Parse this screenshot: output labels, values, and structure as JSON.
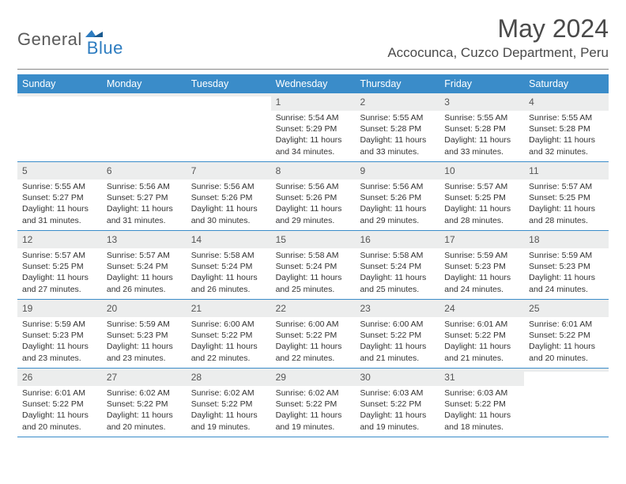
{
  "brand": {
    "part1": "General",
    "part2": "Blue"
  },
  "title": "May 2024",
  "location": "Accocunca, Cuzco Department, Peru",
  "colors": {
    "header_bg": "#3a8cc9",
    "header_text": "#ffffff",
    "daynum_bg": "#eceded",
    "week_divider": "#3a8cc9",
    "brand_gray": "#5a5a5a",
    "brand_blue": "#2d7cc0"
  },
  "day_names": [
    "Sunday",
    "Monday",
    "Tuesday",
    "Wednesday",
    "Thursday",
    "Friday",
    "Saturday"
  ],
  "weeks": [
    [
      {
        "n": "",
        "sr": "",
        "ss": "",
        "dl1": "",
        "dl2": ""
      },
      {
        "n": "",
        "sr": "",
        "ss": "",
        "dl1": "",
        "dl2": ""
      },
      {
        "n": "",
        "sr": "",
        "ss": "",
        "dl1": "",
        "dl2": ""
      },
      {
        "n": "1",
        "sr": "Sunrise: 5:54 AM",
        "ss": "Sunset: 5:29 PM",
        "dl1": "Daylight: 11 hours",
        "dl2": "and 34 minutes."
      },
      {
        "n": "2",
        "sr": "Sunrise: 5:55 AM",
        "ss": "Sunset: 5:28 PM",
        "dl1": "Daylight: 11 hours",
        "dl2": "and 33 minutes."
      },
      {
        "n": "3",
        "sr": "Sunrise: 5:55 AM",
        "ss": "Sunset: 5:28 PM",
        "dl1": "Daylight: 11 hours",
        "dl2": "and 33 minutes."
      },
      {
        "n": "4",
        "sr": "Sunrise: 5:55 AM",
        "ss": "Sunset: 5:28 PM",
        "dl1": "Daylight: 11 hours",
        "dl2": "and 32 minutes."
      }
    ],
    [
      {
        "n": "5",
        "sr": "Sunrise: 5:55 AM",
        "ss": "Sunset: 5:27 PM",
        "dl1": "Daylight: 11 hours",
        "dl2": "and 31 minutes."
      },
      {
        "n": "6",
        "sr": "Sunrise: 5:56 AM",
        "ss": "Sunset: 5:27 PM",
        "dl1": "Daylight: 11 hours",
        "dl2": "and 31 minutes."
      },
      {
        "n": "7",
        "sr": "Sunrise: 5:56 AM",
        "ss": "Sunset: 5:26 PM",
        "dl1": "Daylight: 11 hours",
        "dl2": "and 30 minutes."
      },
      {
        "n": "8",
        "sr": "Sunrise: 5:56 AM",
        "ss": "Sunset: 5:26 PM",
        "dl1": "Daylight: 11 hours",
        "dl2": "and 29 minutes."
      },
      {
        "n": "9",
        "sr": "Sunrise: 5:56 AM",
        "ss": "Sunset: 5:26 PM",
        "dl1": "Daylight: 11 hours",
        "dl2": "and 29 minutes."
      },
      {
        "n": "10",
        "sr": "Sunrise: 5:57 AM",
        "ss": "Sunset: 5:25 PM",
        "dl1": "Daylight: 11 hours",
        "dl2": "and 28 minutes."
      },
      {
        "n": "11",
        "sr": "Sunrise: 5:57 AM",
        "ss": "Sunset: 5:25 PM",
        "dl1": "Daylight: 11 hours",
        "dl2": "and 28 minutes."
      }
    ],
    [
      {
        "n": "12",
        "sr": "Sunrise: 5:57 AM",
        "ss": "Sunset: 5:25 PM",
        "dl1": "Daylight: 11 hours",
        "dl2": "and 27 minutes."
      },
      {
        "n": "13",
        "sr": "Sunrise: 5:57 AM",
        "ss": "Sunset: 5:24 PM",
        "dl1": "Daylight: 11 hours",
        "dl2": "and 26 minutes."
      },
      {
        "n": "14",
        "sr": "Sunrise: 5:58 AM",
        "ss": "Sunset: 5:24 PM",
        "dl1": "Daylight: 11 hours",
        "dl2": "and 26 minutes."
      },
      {
        "n": "15",
        "sr": "Sunrise: 5:58 AM",
        "ss": "Sunset: 5:24 PM",
        "dl1": "Daylight: 11 hours",
        "dl2": "and 25 minutes."
      },
      {
        "n": "16",
        "sr": "Sunrise: 5:58 AM",
        "ss": "Sunset: 5:24 PM",
        "dl1": "Daylight: 11 hours",
        "dl2": "and 25 minutes."
      },
      {
        "n": "17",
        "sr": "Sunrise: 5:59 AM",
        "ss": "Sunset: 5:23 PM",
        "dl1": "Daylight: 11 hours",
        "dl2": "and 24 minutes."
      },
      {
        "n": "18",
        "sr": "Sunrise: 5:59 AM",
        "ss": "Sunset: 5:23 PM",
        "dl1": "Daylight: 11 hours",
        "dl2": "and 24 minutes."
      }
    ],
    [
      {
        "n": "19",
        "sr": "Sunrise: 5:59 AM",
        "ss": "Sunset: 5:23 PM",
        "dl1": "Daylight: 11 hours",
        "dl2": "and 23 minutes."
      },
      {
        "n": "20",
        "sr": "Sunrise: 5:59 AM",
        "ss": "Sunset: 5:23 PM",
        "dl1": "Daylight: 11 hours",
        "dl2": "and 23 minutes."
      },
      {
        "n": "21",
        "sr": "Sunrise: 6:00 AM",
        "ss": "Sunset: 5:22 PM",
        "dl1": "Daylight: 11 hours",
        "dl2": "and 22 minutes."
      },
      {
        "n": "22",
        "sr": "Sunrise: 6:00 AM",
        "ss": "Sunset: 5:22 PM",
        "dl1": "Daylight: 11 hours",
        "dl2": "and 22 minutes."
      },
      {
        "n": "23",
        "sr": "Sunrise: 6:00 AM",
        "ss": "Sunset: 5:22 PM",
        "dl1": "Daylight: 11 hours",
        "dl2": "and 21 minutes."
      },
      {
        "n": "24",
        "sr": "Sunrise: 6:01 AM",
        "ss": "Sunset: 5:22 PM",
        "dl1": "Daylight: 11 hours",
        "dl2": "and 21 minutes."
      },
      {
        "n": "25",
        "sr": "Sunrise: 6:01 AM",
        "ss": "Sunset: 5:22 PM",
        "dl1": "Daylight: 11 hours",
        "dl2": "and 20 minutes."
      }
    ],
    [
      {
        "n": "26",
        "sr": "Sunrise: 6:01 AM",
        "ss": "Sunset: 5:22 PM",
        "dl1": "Daylight: 11 hours",
        "dl2": "and 20 minutes."
      },
      {
        "n": "27",
        "sr": "Sunrise: 6:02 AM",
        "ss": "Sunset: 5:22 PM",
        "dl1": "Daylight: 11 hours",
        "dl2": "and 20 minutes."
      },
      {
        "n": "28",
        "sr": "Sunrise: 6:02 AM",
        "ss": "Sunset: 5:22 PM",
        "dl1": "Daylight: 11 hours",
        "dl2": "and 19 minutes."
      },
      {
        "n": "29",
        "sr": "Sunrise: 6:02 AM",
        "ss": "Sunset: 5:22 PM",
        "dl1": "Daylight: 11 hours",
        "dl2": "and 19 minutes."
      },
      {
        "n": "30",
        "sr": "Sunrise: 6:03 AM",
        "ss": "Sunset: 5:22 PM",
        "dl1": "Daylight: 11 hours",
        "dl2": "and 19 minutes."
      },
      {
        "n": "31",
        "sr": "Sunrise: 6:03 AM",
        "ss": "Sunset: 5:22 PM",
        "dl1": "Daylight: 11 hours",
        "dl2": "and 18 minutes."
      },
      {
        "n": "",
        "sr": "",
        "ss": "",
        "dl1": "",
        "dl2": ""
      }
    ]
  ]
}
